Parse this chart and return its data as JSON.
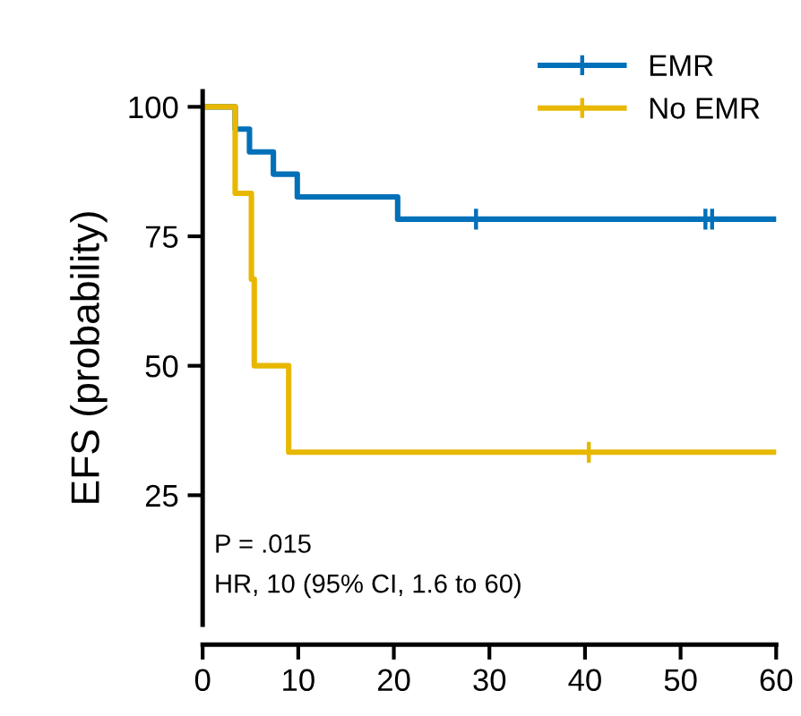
{
  "chart_data": {
    "type": "step",
    "ylabel": "EFS (probability)",
    "xlim": [
      0,
      60
    ],
    "xticks": [
      0,
      10,
      20,
      30,
      40,
      50,
      60
    ],
    "ylim": [
      0,
      103
    ],
    "yticks": [
      25,
      50,
      75,
      100
    ],
    "grid": false,
    "legend": "top right",
    "line_style": "solid",
    "annotations": [
      "P = .015",
      "HR, 10 (95% CI, 1.6 to 60)"
    ],
    "series": [
      {
        "name": "EMR",
        "color": "#0070b8",
        "x": [
          0,
          3.4,
          4.9,
          7.4,
          9.9,
          20.4,
          60
        ],
        "values": [
          100,
          95.7,
          91.3,
          87.0,
          82.6,
          78.3,
          78.3
        ]
      },
      {
        "name": "No EMR",
        "color": "#e8b800",
        "x": [
          0,
          3.4,
          5.1,
          5.4,
          9.0,
          60
        ],
        "values": [
          100,
          83.3,
          66.7,
          50,
          33.3,
          33.3
        ]
      },
      {
        "color": "#0070b8",
        "type": "scatter",
        "marker": "cross",
        "x": [
          28.6,
          52.6,
          53.3
        ],
        "values": [
          78.3,
          78.3,
          78.3
        ]
      },
      {
        "color": "#e8b800",
        "type": "scatter",
        "marker": "cross",
        "x": [
          40.4
        ],
        "values": [
          33.3
        ]
      }
    ]
  }
}
